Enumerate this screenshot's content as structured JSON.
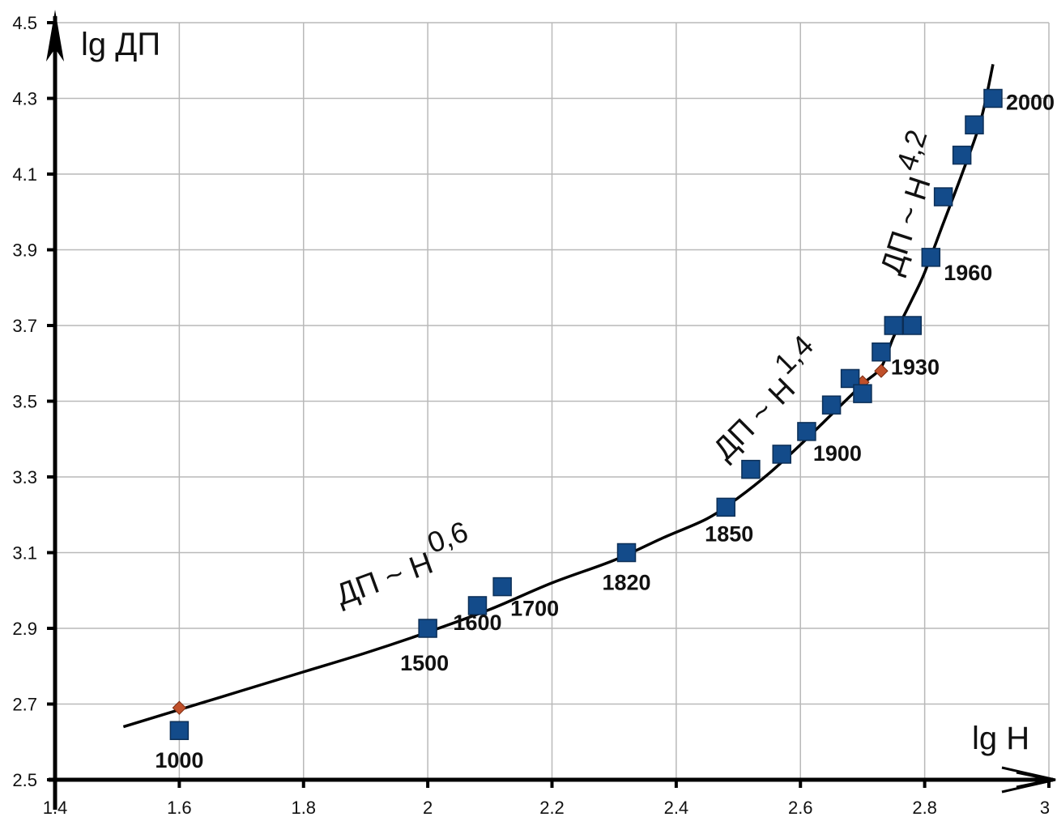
{
  "chart_data": {
    "type": "scatter",
    "title": "",
    "xlabel": "lg H",
    "ylabel": "lg ДП",
    "xlim": [
      1.4,
      3.0
    ],
    "ylim": [
      2.5,
      4.5
    ],
    "xticks": [
      "1.4",
      "1.6",
      "1.8",
      "2",
      "2.2",
      "2.4",
      "2.6",
      "2.8",
      "3"
    ],
    "yticks": [
      "2.5",
      "2.7",
      "2.9",
      "3.1",
      "3.3",
      "3.5",
      "3.7",
      "3.9",
      "4.1",
      "4.3",
      "4.5"
    ],
    "grid": true,
    "colors": {
      "points": "#134b8a",
      "knots": "#c0502a",
      "curve": "#000000"
    },
    "series": [
      {
        "marker": "square",
        "points": [
          {
            "x": 1.6,
            "y": 2.63,
            "label": "1000"
          },
          {
            "x": 2.0,
            "y": 2.9,
            "label": "1500"
          },
          {
            "x": 2.08,
            "y": 2.96,
            "label": "1600"
          },
          {
            "x": 2.12,
            "y": 3.01,
            "label": "1700"
          },
          {
            "x": 2.32,
            "y": 3.1,
            "label": "1820"
          },
          {
            "x": 2.48,
            "y": 3.22,
            "label": "1850"
          },
          {
            "x": 2.52,
            "y": 3.32,
            "label": ""
          },
          {
            "x": 2.57,
            "y": 3.36,
            "label": ""
          },
          {
            "x": 2.61,
            "y": 3.42,
            "label": "1900"
          },
          {
            "x": 2.65,
            "y": 3.49,
            "label": ""
          },
          {
            "x": 2.68,
            "y": 3.56,
            "label": ""
          },
          {
            "x": 2.7,
            "y": 3.52,
            "label": ""
          },
          {
            "x": 2.73,
            "y": 3.63,
            "label": "1930"
          },
          {
            "x": 2.75,
            "y": 3.7,
            "label": ""
          },
          {
            "x": 2.78,
            "y": 3.7,
            "label": ""
          },
          {
            "x": 2.81,
            "y": 3.88,
            "label": "1960"
          },
          {
            "x": 2.83,
            "y": 4.04,
            "label": ""
          },
          {
            "x": 2.86,
            "y": 4.15,
            "label": ""
          },
          {
            "x": 2.88,
            "y": 4.23,
            "label": ""
          },
          {
            "x": 2.91,
            "y": 4.3,
            "label": "2000"
          }
        ]
      },
      {
        "marker": "diamond",
        "points": [
          {
            "x": 1.6,
            "y": 2.69
          },
          {
            "x": 2.7,
            "y": 3.55
          },
          {
            "x": 2.73,
            "y": 3.58
          }
        ]
      }
    ],
    "fit_curve": [
      [
        1.51,
        2.64
      ],
      [
        1.6,
        2.685
      ],
      [
        1.7,
        2.735
      ],
      [
        1.8,
        2.785
      ],
      [
        1.9,
        2.835
      ],
      [
        2.0,
        2.89
      ],
      [
        2.1,
        2.95
      ],
      [
        2.2,
        3.02
      ],
      [
        2.3,
        3.08
      ],
      [
        2.38,
        3.14
      ],
      [
        2.45,
        3.19
      ],
      [
        2.5,
        3.245
      ],
      [
        2.55,
        3.31
      ],
      [
        2.6,
        3.385
      ],
      [
        2.65,
        3.465
      ],
      [
        2.7,
        3.545
      ],
      [
        2.73,
        3.59
      ],
      [
        2.75,
        3.67
      ],
      [
        2.78,
        3.77
      ],
      [
        2.8,
        3.84
      ],
      [
        2.83,
        3.97
      ],
      [
        2.86,
        4.1
      ],
      [
        2.89,
        4.24
      ],
      [
        2.91,
        4.39
      ]
    ],
    "annotations": [
      {
        "base": "ДП ~ H",
        "exponent": "0,6",
        "x": 1.86,
        "y": 2.96,
        "angle": -20
      },
      {
        "base": "ДП ~ H",
        "exponent": "1,4",
        "x": 2.48,
        "y": 3.34,
        "angle": -45
      },
      {
        "base": "ДП ~ H",
        "exponent": "4,2",
        "x": 2.76,
        "y": 3.83,
        "angle": -72
      }
    ]
  }
}
